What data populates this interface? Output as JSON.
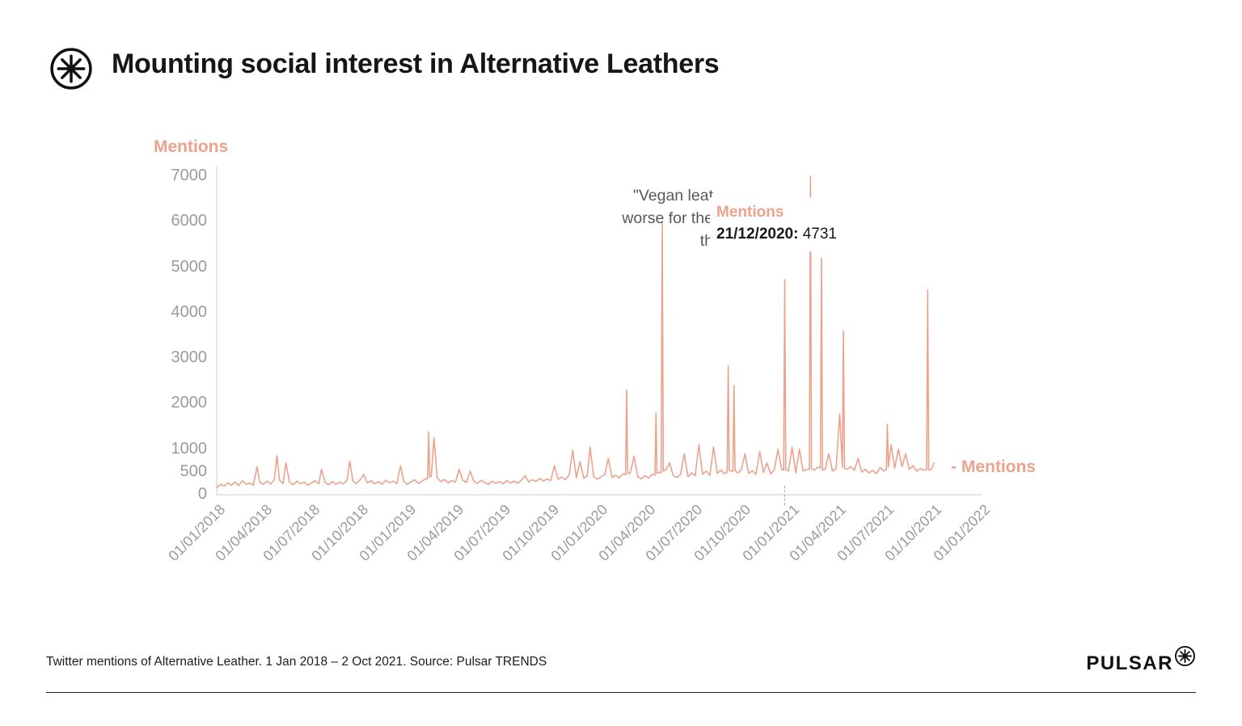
{
  "header": {
    "title": "Mounting social interest in Alternative Leathers"
  },
  "chart": {
    "y_axis_title": "Mentions",
    "series_end_label": "- Mentions",
    "colors": {
      "line": "#eda28c",
      "axis_text": "#9b9b9b",
      "annotation_text": "#57585a"
    }
  },
  "chart_data": {
    "type": "line",
    "title": "Mounting social interest in Alternative Leathers",
    "xlabel": "",
    "ylabel": "Mentions",
    "ylim": [
      0,
      7000
    ],
    "x_domain": [
      "2018-01-01",
      "2022-01-01"
    ],
    "grid": false,
    "y_ticks": [
      0,
      500,
      1000,
      2000,
      3000,
      4000,
      5000,
      6000,
      7000
    ],
    "x_ticks": [
      "01/01/2018",
      "01/04/2018",
      "01/07/2018",
      "01/10/2018",
      "01/01/2019",
      "01/04/2019",
      "01/07/2019",
      "01/10/2019",
      "01/01/2020",
      "01/04/2020",
      "01/07/2020",
      "01/10/2020",
      "01/01/2021",
      "01/04/2021",
      "01/07/2021",
      "01/10/2021",
      "01/01/2022"
    ],
    "annotation": {
      "lines": [
        "\"Vegan leat",
        "worse for the",
        "th"
      ]
    },
    "tooltip": {
      "title": "Mentions",
      "date_label": "21/12/2020:",
      "value": "4731"
    },
    "highlight": {
      "date": "2020-12-21",
      "value": 4731
    },
    "series": [
      {
        "name": "Mentions",
        "points": [
          [
            "2018-01-01",
            160
          ],
          [
            "2018-01-08",
            230
          ],
          [
            "2018-01-15",
            190
          ],
          [
            "2018-01-22",
            260
          ],
          [
            "2018-01-29",
            210
          ],
          [
            "2018-02-05",
            280
          ],
          [
            "2018-02-12",
            200
          ],
          [
            "2018-02-19",
            310
          ],
          [
            "2018-02-26",
            230
          ],
          [
            "2018-03-05",
            260
          ],
          [
            "2018-03-12",
            210
          ],
          [
            "2018-03-19",
            620
          ],
          [
            "2018-03-24",
            280
          ],
          [
            "2018-03-31",
            230
          ],
          [
            "2018-04-07",
            300
          ],
          [
            "2018-04-14",
            240
          ],
          [
            "2018-04-21",
            330
          ],
          [
            "2018-04-26",
            860
          ],
          [
            "2018-05-01",
            320
          ],
          [
            "2018-05-08",
            250
          ],
          [
            "2018-05-13",
            700
          ],
          [
            "2018-05-20",
            280
          ],
          [
            "2018-05-27",
            220
          ],
          [
            "2018-06-03",
            300
          ],
          [
            "2018-06-10",
            240
          ],
          [
            "2018-06-17",
            280
          ],
          [
            "2018-06-24",
            210
          ],
          [
            "2018-07-01",
            260
          ],
          [
            "2018-07-08",
            310
          ],
          [
            "2018-07-15",
            240
          ],
          [
            "2018-07-20",
            560
          ],
          [
            "2018-07-27",
            270
          ],
          [
            "2018-08-03",
            220
          ],
          [
            "2018-08-10",
            290
          ],
          [
            "2018-08-17",
            230
          ],
          [
            "2018-08-24",
            280
          ],
          [
            "2018-08-31",
            240
          ],
          [
            "2018-09-07",
            320
          ],
          [
            "2018-09-12",
            740
          ],
          [
            "2018-09-18",
            300
          ],
          [
            "2018-09-25",
            250
          ],
          [
            "2018-10-02",
            330
          ],
          [
            "2018-10-09",
            450
          ],
          [
            "2018-10-16",
            260
          ],
          [
            "2018-10-23",
            310
          ],
          [
            "2018-10-30",
            240
          ],
          [
            "2018-11-06",
            290
          ],
          [
            "2018-11-13",
            230
          ],
          [
            "2018-11-20",
            320
          ],
          [
            "2018-11-27",
            260
          ],
          [
            "2018-12-04",
            300
          ],
          [
            "2018-12-11",
            240
          ],
          [
            "2018-12-18",
            640
          ],
          [
            "2018-12-24",
            300
          ],
          [
            "2018-12-31",
            230
          ],
          [
            "2019-01-07",
            280
          ],
          [
            "2019-01-14",
            330
          ],
          [
            "2019-01-21",
            250
          ],
          [
            "2019-01-28",
            300
          ],
          [
            "2019-02-04",
            350
          ],
          [
            "2019-02-08",
            360
          ],
          [
            "2019-02-10",
            1380
          ],
          [
            "2019-02-12",
            390
          ],
          [
            "2019-02-15",
            420
          ],
          [
            "2019-02-20",
            1250
          ],
          [
            "2019-02-26",
            380
          ],
          [
            "2019-03-05",
            290
          ],
          [
            "2019-03-12",
            340
          ],
          [
            "2019-03-19",
            260
          ],
          [
            "2019-03-26",
            310
          ],
          [
            "2019-04-02",
            280
          ],
          [
            "2019-04-09",
            560
          ],
          [
            "2019-04-16",
            320
          ],
          [
            "2019-04-23",
            270
          ],
          [
            "2019-04-30",
            520
          ],
          [
            "2019-05-07",
            300
          ],
          [
            "2019-05-14",
            250
          ],
          [
            "2019-05-21",
            320
          ],
          [
            "2019-05-28",
            270
          ],
          [
            "2019-06-04",
            230
          ],
          [
            "2019-06-11",
            300
          ],
          [
            "2019-06-18",
            250
          ],
          [
            "2019-06-25",
            290
          ],
          [
            "2019-07-02",
            240
          ],
          [
            "2019-07-09",
            310
          ],
          [
            "2019-07-16",
            260
          ],
          [
            "2019-07-23",
            300
          ],
          [
            "2019-07-30",
            250
          ],
          [
            "2019-08-06",
            320
          ],
          [
            "2019-08-13",
            420
          ],
          [
            "2019-08-20",
            280
          ],
          [
            "2019-08-27",
            330
          ],
          [
            "2019-09-03",
            290
          ],
          [
            "2019-09-10",
            360
          ],
          [
            "2019-09-17",
            300
          ],
          [
            "2019-09-24",
            350
          ],
          [
            "2019-10-01",
            310
          ],
          [
            "2019-10-08",
            640
          ],
          [
            "2019-10-15",
            340
          ],
          [
            "2019-10-22",
            390
          ],
          [
            "2019-10-29",
            330
          ],
          [
            "2019-11-05",
            430
          ],
          [
            "2019-11-12",
            980
          ],
          [
            "2019-11-19",
            380
          ],
          [
            "2019-11-26",
            730
          ],
          [
            "2019-12-03",
            360
          ],
          [
            "2019-12-10",
            420
          ],
          [
            "2019-12-15",
            1050
          ],
          [
            "2019-12-22",
            400
          ],
          [
            "2019-12-29",
            340
          ],
          [
            "2020-01-05",
            390
          ],
          [
            "2020-01-12",
            440
          ],
          [
            "2020-01-19",
            800
          ],
          [
            "2020-01-26",
            380
          ],
          [
            "2020-02-02",
            430
          ],
          [
            "2020-02-09",
            370
          ],
          [
            "2020-02-16",
            460
          ],
          [
            "2020-02-21",
            440
          ],
          [
            "2020-02-23",
            2300
          ],
          [
            "2020-02-25",
            460
          ],
          [
            "2020-03-01",
            480
          ],
          [
            "2020-03-08",
            850
          ],
          [
            "2020-03-15",
            400
          ],
          [
            "2020-03-22",
            350
          ],
          [
            "2020-03-29",
            420
          ],
          [
            "2020-04-05",
            370
          ],
          [
            "2020-04-12",
            450
          ],
          [
            "2020-04-17",
            430
          ],
          [
            "2020-04-19",
            1800
          ],
          [
            "2020-04-21",
            470
          ],
          [
            "2020-04-26",
            500
          ],
          [
            "2020-04-29",
            480
          ],
          [
            "2020-05-01",
            6000
          ],
          [
            "2020-05-03",
            520
          ],
          [
            "2020-05-08",
            550
          ],
          [
            "2020-05-15",
            700
          ],
          [
            "2020-05-22",
            420
          ],
          [
            "2020-05-29",
            380
          ],
          [
            "2020-06-05",
            450
          ],
          [
            "2020-06-12",
            900
          ],
          [
            "2020-06-19",
            400
          ],
          [
            "2020-06-26",
            480
          ],
          [
            "2020-07-03",
            420
          ],
          [
            "2020-07-10",
            1100
          ],
          [
            "2020-07-17",
            450
          ],
          [
            "2020-07-24",
            520
          ],
          [
            "2020-07-31",
            430
          ],
          [
            "2020-08-07",
            1050
          ],
          [
            "2020-08-14",
            470
          ],
          [
            "2020-08-21",
            540
          ],
          [
            "2020-08-28",
            460
          ],
          [
            "2020-09-02",
            500
          ],
          [
            "2020-09-04",
            2830
          ],
          [
            "2020-09-06",
            540
          ],
          [
            "2020-09-11",
            520
          ],
          [
            "2020-09-13",
            510
          ],
          [
            "2020-09-15",
            2400
          ],
          [
            "2020-09-17",
            530
          ],
          [
            "2020-09-22",
            480
          ],
          [
            "2020-09-29",
            550
          ],
          [
            "2020-10-06",
            900
          ],
          [
            "2020-10-13",
            470
          ],
          [
            "2020-10-20",
            530
          ],
          [
            "2020-10-27",
            450
          ],
          [
            "2020-11-03",
            950
          ],
          [
            "2020-11-10",
            490
          ],
          [
            "2020-11-17",
            700
          ],
          [
            "2020-11-24",
            460
          ],
          [
            "2020-12-01",
            540
          ],
          [
            "2020-12-08",
            1000
          ],
          [
            "2020-12-15",
            560
          ],
          [
            "2020-12-19",
            540
          ],
          [
            "2020-12-21",
            4731
          ],
          [
            "2020-12-23",
            560
          ],
          [
            "2020-12-28",
            520
          ],
          [
            "2021-01-04",
            1050
          ],
          [
            "2021-01-11",
            480
          ],
          [
            "2021-01-18",
            1000
          ],
          [
            "2021-01-25",
            520
          ],
          [
            "2021-02-01",
            560
          ],
          [
            "2021-02-06",
            560
          ],
          [
            "2021-02-08",
            7000
          ],
          [
            "2021-02-10",
            580
          ],
          [
            "2021-02-15",
            540
          ],
          [
            "2021-02-22",
            600
          ],
          [
            "2021-02-27",
            590
          ],
          [
            "2021-03-01",
            5200
          ],
          [
            "2021-03-03",
            540
          ],
          [
            "2021-03-08",
            560
          ],
          [
            "2021-03-15",
            900
          ],
          [
            "2021-03-22",
            520
          ],
          [
            "2021-03-29",
            580
          ],
          [
            "2021-04-05",
            1780
          ],
          [
            "2021-04-10",
            600
          ],
          [
            "2021-04-12",
            3600
          ],
          [
            "2021-04-14",
            580
          ],
          [
            "2021-04-19",
            560
          ],
          [
            "2021-04-26",
            620
          ],
          [
            "2021-05-03",
            540
          ],
          [
            "2021-05-10",
            800
          ],
          [
            "2021-05-17",
            500
          ],
          [
            "2021-05-24",
            560
          ],
          [
            "2021-05-31",
            480
          ],
          [
            "2021-06-07",
            540
          ],
          [
            "2021-06-14",
            460
          ],
          [
            "2021-06-21",
            600
          ],
          [
            "2021-06-28",
            520
          ],
          [
            "2021-07-03",
            560
          ],
          [
            "2021-07-05",
            1550
          ],
          [
            "2021-07-07",
            620
          ],
          [
            "2021-07-12",
            1100
          ],
          [
            "2021-07-19",
            580
          ],
          [
            "2021-07-26",
            1000
          ],
          [
            "2021-08-02",
            620
          ],
          [
            "2021-08-09",
            900
          ],
          [
            "2021-08-16",
            560
          ],
          [
            "2021-08-23",
            640
          ],
          [
            "2021-08-30",
            520
          ],
          [
            "2021-09-06",
            580
          ],
          [
            "2021-09-13",
            540
          ],
          [
            "2021-09-18",
            560
          ],
          [
            "2021-09-20",
            4500
          ],
          [
            "2021-09-22",
            540
          ],
          [
            "2021-09-27",
            560
          ],
          [
            "2021-10-02",
            700
          ]
        ]
      }
    ]
  },
  "footer": {
    "caption": "Twitter mentions of Alternative Leather. 1 Jan 2018 – 2 Oct 2021. Source: Pulsar TRENDS",
    "brand": "PULSAR"
  }
}
